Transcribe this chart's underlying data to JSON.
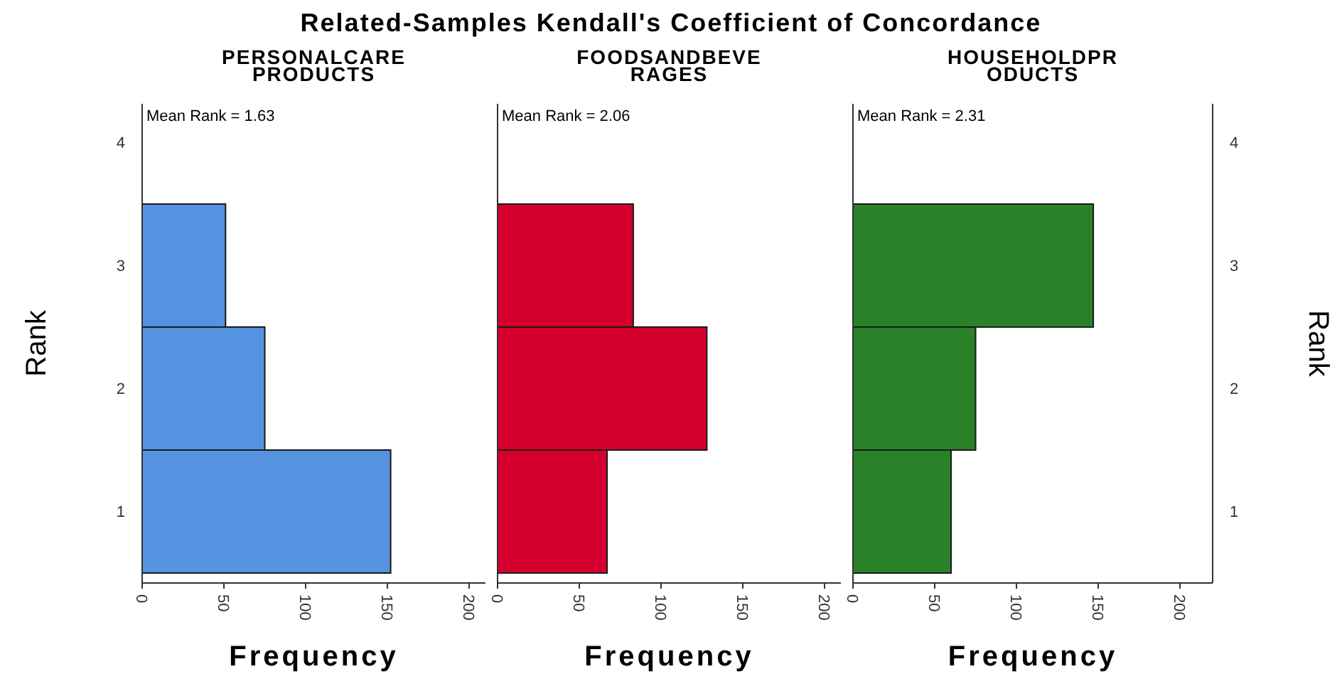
{
  "chart_data": [
    {
      "type": "bar",
      "orientation": "horizontal",
      "title": "Related-Samples Kendall's Coefficient of Concordance",
      "subtitle": "PERSONALCARE\nPRODUCTS",
      "xlabel": "Frequency",
      "ylabel": "Rank",
      "annotations": [
        "Mean Rank = 1.63"
      ],
      "categories": [
        "4",
        "3",
        "2",
        "1"
      ],
      "values": [
        null,
        51,
        75,
        152
      ],
      "color": "#5592e0",
      "xlim": [
        0,
        210
      ],
      "xticks": [
        0,
        50,
        100,
        150,
        200
      ]
    },
    {
      "type": "bar",
      "orientation": "horizontal",
      "subtitle": "FOODSANDBEVE\nRAGES",
      "xlabel": "Frequency",
      "annotations": [
        "Mean Rank = 2.06"
      ],
      "categories": [
        null,
        null,
        null,
        null
      ],
      "values": [
        null,
        83,
        128,
        67
      ],
      "color": "#d5002e",
      "xlim": [
        0,
        210
      ],
      "xticks": [
        0,
        50,
        100,
        150,
        200
      ],
      "tick_labels": "x"
    },
    {
      "type": "bar",
      "orientation": "horizontal",
      "subtitle": "HOUSEHOLDPR\nODUCTS",
      "xlabel": "Frequency",
      "ylabel": "Rank",
      "annotations": [
        "Mean Rank = 2.31"
      ],
      "categories": [
        "4",
        "3",
        "2",
        "1"
      ],
      "values": [
        null,
        147,
        75,
        60
      ],
      "color": "#2a8228",
      "xlim": [
        0,
        220
      ],
      "xticks": [
        0,
        50,
        100,
        150,
        200
      ]
    }
  ]
}
